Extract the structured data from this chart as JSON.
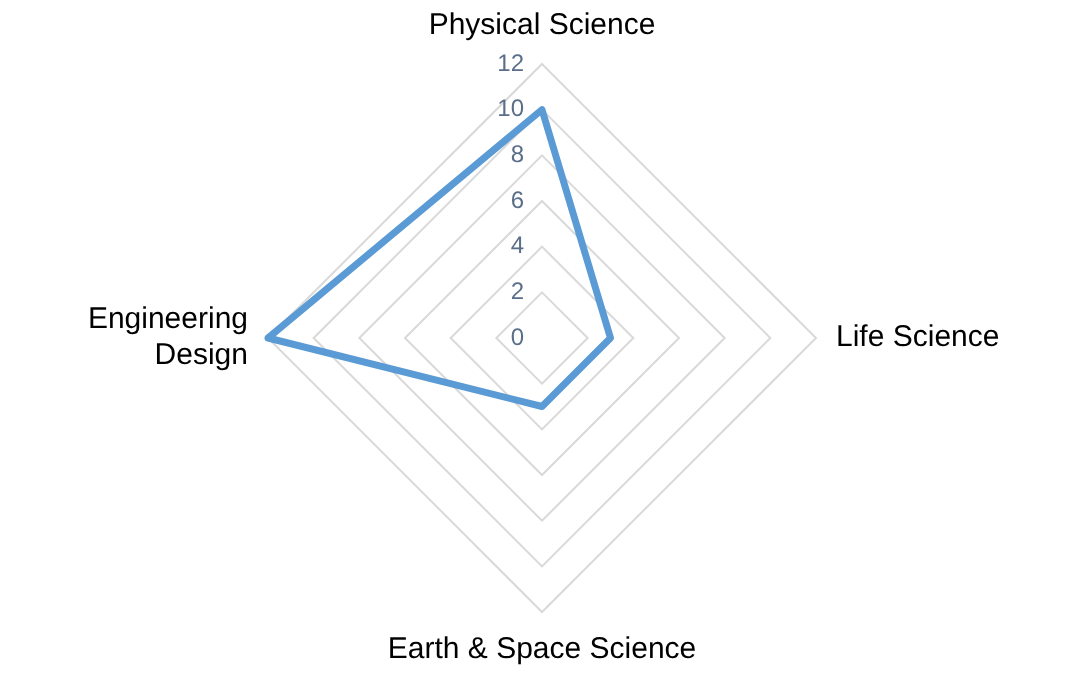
{
  "chart_data": {
    "type": "radar",
    "categories": [
      "Physical Science",
      "Life Science",
      "Earth & Space Science",
      "Engineering Design"
    ],
    "series": [
      {
        "color": "#5b9bd5",
        "values": [
          10,
          3,
          3,
          12
        ]
      }
    ],
    "ylim": [
      0,
      12
    ],
    "yticks": [
      0,
      2,
      4,
      6,
      8,
      10,
      12
    ],
    "grid": true,
    "legend": false,
    "marker": "none",
    "line_style": "solid"
  }
}
